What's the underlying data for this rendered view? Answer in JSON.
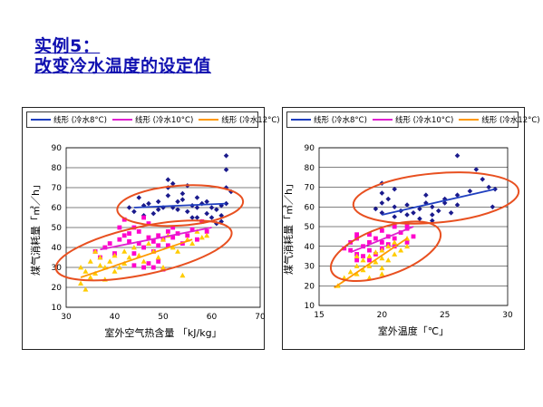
{
  "slide": {
    "title_line1": "实例5：",
    "title_line2": "改变冷水温度的设定值"
  },
  "colors": {
    "series_8": "#1a1a8c",
    "series_10": "#ff00cc",
    "series_12": "#ffcc00",
    "trend_8": "#1f3fbf",
    "trend_10": "#e020d0",
    "trend_12": "#ff9900",
    "ellipse": "#e85020"
  },
  "chart_data": [
    {
      "type": "scatter",
      "xlabel": "室外空气热含量 「kJ/kg」",
      "ylabel": "煤气消耗量「㎥／h」",
      "xlim": [
        30,
        70
      ],
      "ylim": [
        10,
        90
      ],
      "xticks": [
        30,
        40,
        50,
        60,
        70
      ],
      "yticks": [
        10,
        20,
        30,
        40,
        50,
        60,
        70,
        80,
        90
      ],
      "legend": [
        "线形 (冷水8°C)",
        "线形 (冷水10°C)",
        "线形 (冷水12°C)"
      ],
      "trendlines": [
        {
          "x": [
            44,
            63
          ],
          "y": [
            60,
            62
          ]
        },
        {
          "x": [
            37,
            60
          ],
          "y": [
            39,
            50
          ]
        },
        {
          "x": [
            33,
            56
          ],
          "y": [
            25,
            44
          ]
        }
      ],
      "ellipses": [
        {
          "cx": 53.5,
          "cy": 61,
          "rx": 13,
          "ry": 10,
          "angle": -4
        },
        {
          "cx": 46,
          "cy": 38.5,
          "rx": 18.5,
          "ry": 12,
          "angle": -12
        }
      ],
      "series": [
        {
          "name": "冷水8°C",
          "marker": "diamond",
          "points": [
            [
              43,
              60
            ],
            [
              44,
              58
            ],
            [
              45,
              65
            ],
            [
              46,
              61
            ],
            [
              47,
              62
            ],
            [
              48,
              57
            ],
            [
              49,
              59
            ],
            [
              50,
              60
            ],
            [
              51,
              74
            ],
            [
              51,
              70
            ],
            [
              51,
              66
            ],
            [
              52,
              72
            ],
            [
              52,
              60
            ],
            [
              53,
              59
            ],
            [
              53,
              63
            ],
            [
              54,
              64
            ],
            [
              55,
              58
            ],
            [
              55,
              71
            ],
            [
              56,
              61
            ],
            [
              56,
              55
            ],
            [
              57,
              65
            ],
            [
              57,
              60
            ],
            [
              58,
              62
            ],
            [
              58,
              53
            ],
            [
              59,
              57
            ],
            [
              60,
              60
            ],
            [
              60,
              55
            ],
            [
              61,
              59
            ],
            [
              61,
              52
            ],
            [
              62,
              61
            ],
            [
              62,
              56
            ],
            [
              62,
              53
            ],
            [
              63,
              86
            ],
            [
              63,
              79
            ],
            [
              63,
              70
            ],
            [
              64,
              68
            ],
            [
              63,
              62
            ],
            [
              46,
              56
            ],
            [
              49,
              63
            ],
            [
              54,
              67
            ],
            [
              57,
              55
            ],
            [
              59,
              63
            ]
          ]
        },
        {
          "name": "冷水10°C",
          "marker": "square",
          "points": [
            [
              36,
              38
            ],
            [
              37,
              35
            ],
            [
              38,
              40
            ],
            [
              39,
              42
            ],
            [
              40,
              37
            ],
            [
              41,
              44
            ],
            [
              41,
              50
            ],
            [
              42,
              46
            ],
            [
              42,
              54
            ],
            [
              43,
              47
            ],
            [
              43,
              43
            ],
            [
              44,
              50
            ],
            [
              44,
              37
            ],
            [
              45,
              48
            ],
            [
              45,
              42
            ],
            [
              46,
              40
            ],
            [
              46,
              55
            ],
            [
              47,
              52
            ],
            [
              47,
              45
            ],
            [
              47,
              32
            ],
            [
              48,
              43
            ],
            [
              48,
              38
            ],
            [
              48,
              30
            ],
            [
              49,
              46
            ],
            [
              49,
              33
            ],
            [
              50,
              44
            ],
            [
              50,
              29
            ],
            [
              51,
              48
            ],
            [
              51,
              41
            ],
            [
              52,
              50
            ],
            [
              52,
              45
            ],
            [
              53,
              47
            ],
            [
              54,
              42
            ],
            [
              55,
              46
            ],
            [
              56,
              49
            ],
            [
              57,
              44
            ],
            [
              58,
              53
            ],
            [
              59,
              48
            ],
            [
              44,
              31
            ],
            [
              46,
              30
            ],
            [
              49,
              41
            ]
          ]
        },
        {
          "name": "冷水12°C",
          "marker": "triangle",
          "points": [
            [
              33,
              30
            ],
            [
              33,
              22
            ],
            [
              34,
              19
            ],
            [
              34,
              28
            ],
            [
              35,
              33
            ],
            [
              35,
              25
            ],
            [
              36,
              38
            ],
            [
              36,
              27
            ],
            [
              37,
              35
            ],
            [
              37,
              31
            ],
            [
              38,
              30
            ],
            [
              38,
              24
            ],
            [
              39,
              33
            ],
            [
              40,
              36
            ],
            [
              40,
              28
            ],
            [
              41,
              30
            ],
            [
              42,
              38
            ],
            [
              42,
              32
            ],
            [
              43,
              35
            ],
            [
              44,
              40
            ],
            [
              45,
              36
            ],
            [
              46,
              33
            ],
            [
              47,
              42
            ],
            [
              48,
              38
            ],
            [
              49,
              35
            ],
            [
              50,
              44
            ],
            [
              50,
              30
            ],
            [
              51,
              46
            ],
            [
              52,
              40
            ],
            [
              53,
              38
            ],
            [
              54,
              26
            ],
            [
              55,
              44
            ],
            [
              56,
              42
            ],
            [
              57,
              48
            ],
            [
              58,
              45
            ],
            [
              59,
              46
            ]
          ]
        }
      ]
    },
    {
      "type": "scatter",
      "xlabel": "室外温度「℃」",
      "ylabel": "煤气消耗量「㎥／h」",
      "xlim": [
        15,
        30
      ],
      "ylim": [
        10,
        90
      ],
      "xticks": [
        15,
        20,
        25,
        30
      ],
      "yticks": [
        10,
        20,
        30,
        40,
        50,
        60,
        70,
        80,
        90
      ],
      "legend": [
        "线形 (冷水8°C)",
        "线形 (冷水10°C)",
        "线形 (冷水12°C)"
      ],
      "trendlines": [
        {
          "x": [
            20,
            29
          ],
          "y": [
            56,
            69
          ]
        },
        {
          "x": [
            17.5,
            22.5
          ],
          "y": [
            37,
            50
          ]
        },
        {
          "x": [
            16.2,
            22
          ],
          "y": [
            19,
            44
          ]
        }
      ],
      "ellipses": [
        {
          "cx": 24.3,
          "cy": 64.5,
          "rx": 6.6,
          "ry": 12.5,
          "angle": -5
        },
        {
          "cx": 20.3,
          "cy": 37.5,
          "rx": 4.6,
          "ry": 12,
          "angle": -20
        }
      ],
      "series": [
        {
          "name": "冷水8°C",
          "marker": "diamond",
          "points": [
            [
              19.5,
              59
            ],
            [
              20,
              72
            ],
            [
              20,
              67
            ],
            [
              20,
              62
            ],
            [
              20,
              57
            ],
            [
              20.5,
              64
            ],
            [
              21,
              60
            ],
            [
              21,
              55
            ],
            [
              21.5,
              58
            ],
            [
              22,
              56
            ],
            [
              22,
              61
            ],
            [
              22.5,
              57
            ],
            [
              23,
              59
            ],
            [
              23,
              54
            ],
            [
              23.5,
              62
            ],
            [
              23.5,
              66
            ],
            [
              24,
              60
            ],
            [
              24,
              56
            ],
            [
              24.5,
              58
            ],
            [
              25,
              62
            ],
            [
              25,
              64
            ],
            [
              25.5,
              57
            ],
            [
              26,
              61
            ],
            [
              26,
              66
            ],
            [
              26,
              86
            ],
            [
              27,
              68
            ],
            [
              27.5,
              79
            ],
            [
              28,
              74
            ],
            [
              28.5,
              70
            ],
            [
              28.8,
              60
            ],
            [
              29,
              69
            ],
            [
              21,
              69
            ],
            [
              24,
              53
            ]
          ]
        },
        {
          "name": "冷水10°C",
          "marker": "square",
          "points": [
            [
              17.5,
              42
            ],
            [
              17.5,
              38
            ],
            [
              18,
              44
            ],
            [
              18,
              36
            ],
            [
              18,
              33
            ],
            [
              18.5,
              40
            ],
            [
              18.5,
              35
            ],
            [
              19,
              46
            ],
            [
              19,
              42
            ],
            [
              19,
              38
            ],
            [
              19.5,
              44
            ],
            [
              19.5,
              36
            ],
            [
              20,
              48
            ],
            [
              20,
              42
            ],
            [
              20,
              39
            ],
            [
              20.5,
              45
            ],
            [
              20.5,
              41
            ],
            [
              21,
              50
            ],
            [
              21,
              44
            ],
            [
              21,
              40
            ],
            [
              21.5,
              47
            ],
            [
              22,
              49
            ],
            [
              22,
              42
            ],
            [
              22.5,
              45
            ],
            [
              22,
              51
            ],
            [
              17,
              39
            ],
            [
              18,
              46
            ],
            [
              19,
              33
            ]
          ]
        },
        {
          "name": "冷水12°C",
          "marker": "triangle",
          "points": [
            [
              16.5,
              20
            ],
            [
              17,
              24
            ],
            [
              17.5,
              27
            ],
            [
              18,
              30
            ],
            [
              18,
              26
            ],
            [
              18.5,
              33
            ],
            [
              18.5,
              28
            ],
            [
              19,
              35
            ],
            [
              19,
              30
            ],
            [
              19,
              24
            ],
            [
              19.5,
              37
            ],
            [
              19.5,
              32
            ],
            [
              20,
              38
            ],
            [
              20,
              34
            ],
            [
              20,
              29
            ],
            [
              20.5,
              40
            ],
            [
              20.5,
              33
            ],
            [
              21,
              42
            ],
            [
              21,
              36
            ],
            [
              21.5,
              38
            ],
            [
              22,
              44
            ],
            [
              22,
              40
            ],
            [
              18,
              35
            ],
            [
              20,
              26
            ]
          ]
        }
      ]
    }
  ]
}
